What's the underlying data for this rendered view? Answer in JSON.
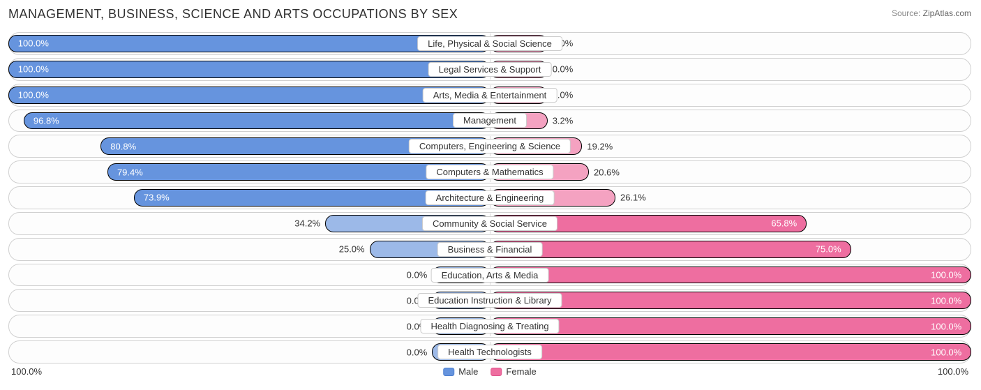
{
  "title": "MANAGEMENT, BUSINESS, SCIENCE AND ARTS OCCUPATIONS BY SEX",
  "source_label": "Source:",
  "source_name": "ZipAtlas.com",
  "axis": {
    "left": "100.0%",
    "right": "100.0%"
  },
  "legend": {
    "male": "Male",
    "female": "Female"
  },
  "colors": {
    "male_fill": "#6694de",
    "male_border": "#4e7fd0",
    "male_light": "#9cb9e8",
    "male_light_border": "#7ea1dc",
    "female_fill": "#ee6ea0",
    "female_border": "#e0548c",
    "female_light": "#f4a2c1",
    "female_light_border": "#ee8fb4",
    "row_border": "#d0d0d0",
    "background": "#ffffff",
    "title_color": "#303030",
    "source_color": "#888888"
  },
  "chart": {
    "type": "diverging-bar",
    "title_fontsize": 18,
    "label_fontsize": 13,
    "row_radius": 16,
    "rows": [
      {
        "category": "Life, Physical & Social Science",
        "male": 100.0,
        "female": 0.0,
        "male_label": "100.0%",
        "female_label": "0.0%"
      },
      {
        "category": "Legal Services & Support",
        "male": 100.0,
        "female": 0.0,
        "male_label": "100.0%",
        "female_label": "0.0%"
      },
      {
        "category": "Arts, Media & Entertainment",
        "male": 100.0,
        "female": 0.0,
        "male_label": "100.0%",
        "female_label": "0.0%"
      },
      {
        "category": "Management",
        "male": 96.8,
        "female": 3.2,
        "male_label": "96.8%",
        "female_label": "3.2%"
      },
      {
        "category": "Computers, Engineering & Science",
        "male": 80.8,
        "female": 19.2,
        "male_label": "80.8%",
        "female_label": "19.2%"
      },
      {
        "category": "Computers & Mathematics",
        "male": 79.4,
        "female": 20.6,
        "male_label": "79.4%",
        "female_label": "20.6%"
      },
      {
        "category": "Architecture & Engineering",
        "male": 73.9,
        "female": 26.1,
        "male_label": "73.9%",
        "female_label": "26.1%"
      },
      {
        "category": "Community & Social Service",
        "male": 34.2,
        "female": 65.8,
        "male_label": "34.2%",
        "female_label": "65.8%"
      },
      {
        "category": "Business & Financial",
        "male": 25.0,
        "female": 75.0,
        "male_label": "25.0%",
        "female_label": "75.0%"
      },
      {
        "category": "Education, Arts & Media",
        "male": 0.0,
        "female": 100.0,
        "male_label": "0.0%",
        "female_label": "100.0%"
      },
      {
        "category": "Education Instruction & Library",
        "male": 0.0,
        "female": 100.0,
        "male_label": "0.0%",
        "female_label": "100.0%"
      },
      {
        "category": "Health Diagnosing & Treating",
        "male": 0.0,
        "female": 100.0,
        "male_label": "0.0%",
        "female_label": "100.0%"
      },
      {
        "category": "Health Technologists",
        "male": 0.0,
        "female": 100.0,
        "male_label": "0.0%",
        "female_label": "100.0%"
      }
    ],
    "min_bar_pct": 12
  }
}
